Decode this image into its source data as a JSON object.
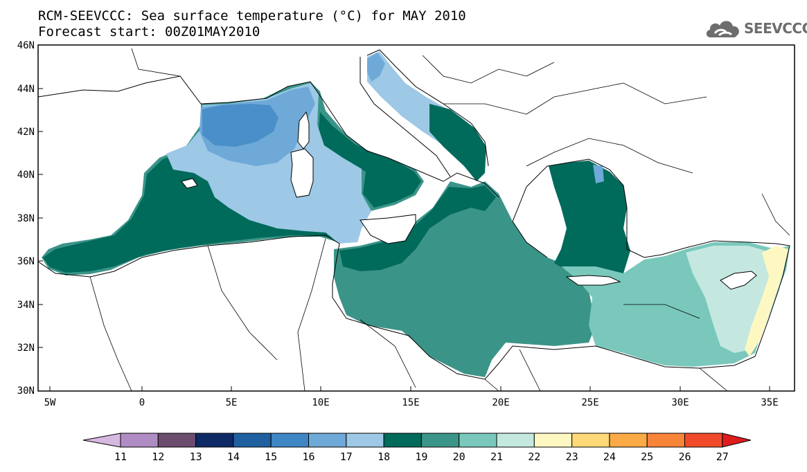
{
  "header": {
    "title": "RCM-SEEVCCC: Sea surface temperature (°C) for MAY 2010",
    "subtitle": "Forecast start: 00Z01MAY2010",
    "logo_text": "SEEVCCC"
  },
  "map": {
    "lon_range": [
      -5.5,
      35.5
    ],
    "lat_range": [
      30,
      46
    ],
    "colors": {
      "land": "#ffffff",
      "coast": "#000000",
      "c16": "#4a8fc9",
      "c17": "#6ea9d8",
      "c18": "#9dc8e6",
      "c19": "#006a5b",
      "c20": "#3b9488",
      "c21": "#7ac8bc",
      "c22": "#c4e8e0",
      "c23": "#fdf8c2"
    }
  },
  "axes": {
    "y_ticks": [
      "46N",
      "44N",
      "42N",
      "40N",
      "38N",
      "36N",
      "34N",
      "32N",
      "30N"
    ],
    "x_ticks": [
      "5W",
      "0",
      "5E",
      "10E",
      "15E",
      "20E",
      "25E",
      "30E",
      "35E"
    ]
  },
  "colorbar": {
    "labels": [
      "11",
      "12",
      "13",
      "14",
      "15",
      "16",
      "17",
      "18",
      "19",
      "20",
      "21",
      "22",
      "23",
      "24",
      "25",
      "26",
      "27"
    ],
    "colors": [
      "#b08cc4",
      "#6c4d6e",
      "#0e2a66",
      "#1f61a0",
      "#3e86c4",
      "#6ea9d8",
      "#9dc8e6",
      "#006a5b",
      "#3b9488",
      "#7ac8bc",
      "#c4e8e0",
      "#fdf8c2",
      "#fdd979",
      "#fbaa45",
      "#f8843a",
      "#f04a2a"
    ],
    "left_arrow_color": "#d6b8e0",
    "right_arrow_color": "#dd1c1c"
  }
}
